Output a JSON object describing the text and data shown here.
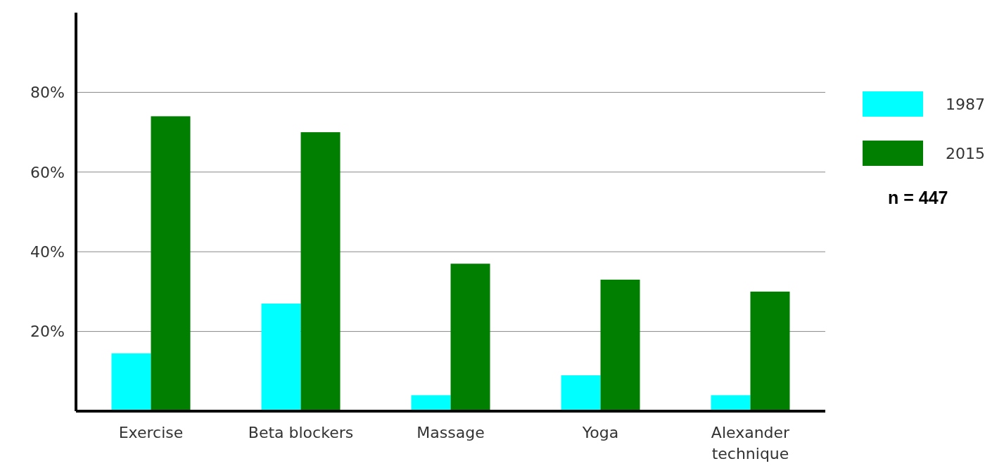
{
  "chart_data": {
    "type": "bar",
    "categories": [
      "Exercise",
      "Beta blockers",
      "Massage",
      "Yoga",
      "Alexander technique"
    ],
    "series": [
      {
        "name": "1987",
        "color": "#00ffff",
        "values": [
          14.5,
          27,
          4,
          9,
          4
        ]
      },
      {
        "name": "2015",
        "color": "#007f00",
        "values": [
          74,
          70,
          37,
          33,
          30
        ]
      }
    ],
    "ylim": [
      0,
      100
    ],
    "yticks": [
      {
        "value": 20,
        "label": "20%"
      },
      {
        "value": 40,
        "label": "40%"
      },
      {
        "value": 60,
        "label": "60%"
      },
      {
        "value": 80,
        "label": "80%"
      }
    ],
    "grid": "y",
    "legend": "right",
    "annotations": [
      "n = 447"
    ]
  }
}
